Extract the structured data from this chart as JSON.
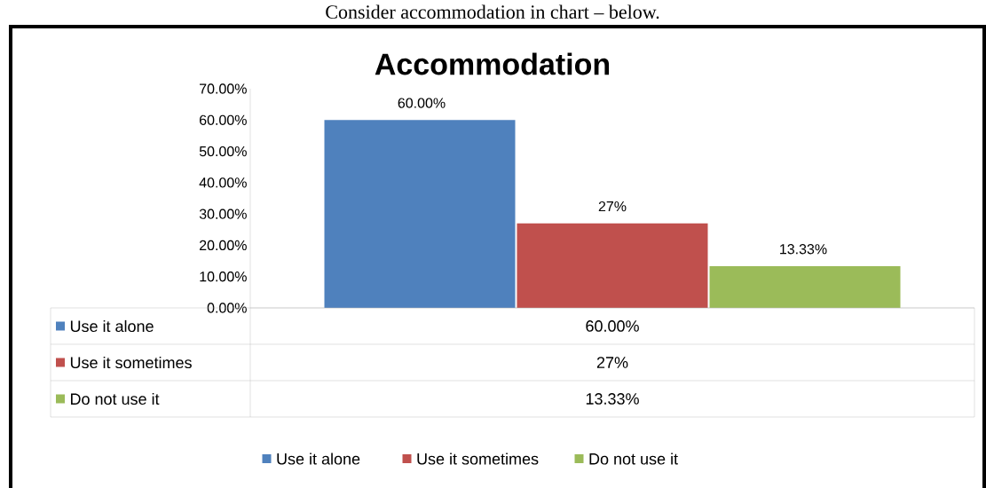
{
  "chart_data": {
    "type": "bar",
    "title": "Accommodation",
    "annotations": [
      "Consider accommodation in chart – below."
    ],
    "categories": [
      null
    ],
    "series": [
      {
        "name": "Use it alone",
        "color": "#4f81bd",
        "values": [
          60
        ],
        "value_labels": [
          "60.00%"
        ]
      },
      {
        "name": "Use it sometimes",
        "color": "#c0504d",
        "values": [
          27
        ],
        "value_labels": [
          "27%"
        ]
      },
      {
        "name": "Do not use it",
        "color": "#9bbb59",
        "values": [
          13.33
        ],
        "value_labels": [
          "13.33%"
        ]
      }
    ],
    "ylim": [
      0,
      70
    ],
    "yticks": [
      {
        "value": 0,
        "label": "0.00%"
      },
      {
        "value": 10,
        "label": "10.00%"
      },
      {
        "value": 20,
        "label": "20.00%"
      },
      {
        "value": 30,
        "label": "30.00%"
      },
      {
        "value": 40,
        "label": "40.00%"
      },
      {
        "value": 50,
        "label": "50.00%"
      },
      {
        "value": 60,
        "label": "60.00%"
      },
      {
        "value": 70,
        "label": "70.00%"
      }
    ],
    "legend": "bottom"
  }
}
